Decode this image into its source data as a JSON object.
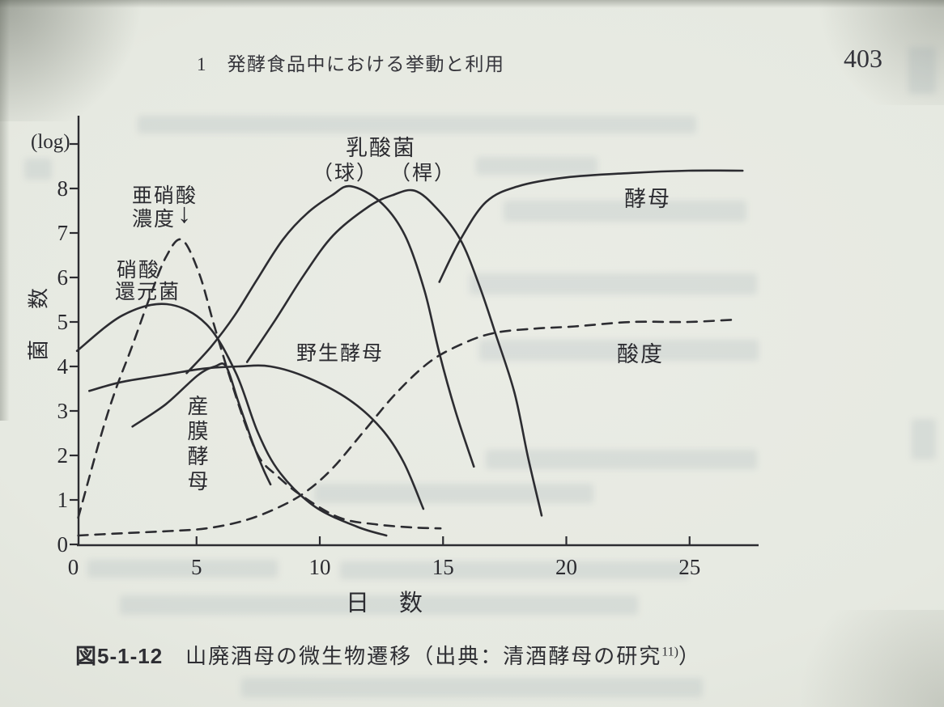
{
  "page": {
    "header": {
      "section_title": "1　発酵食品中における挙動と利用",
      "page_number": "403"
    },
    "caption": {
      "figure_label": "図5-1-12",
      "figure_title": "山廃酒母の微生物遷移",
      "source_text": "（出典：清酒酵母の研究",
      "reference_mark": "11)",
      "source_close": "）"
    }
  },
  "chart_data": {
    "type": "line",
    "title": "山廃酒母の微生物遷移",
    "xlabel": "日　数",
    "ylabel": "菌　数",
    "y_unit": "(log)",
    "xlim": [
      0,
      27.8
    ],
    "ylim": [
      0,
      9.4
    ],
    "x_ticks": [
      0,
      5,
      10,
      15,
      20,
      25
    ],
    "y_ticks": [
      0,
      1,
      2,
      3,
      4,
      5,
      6,
      7,
      8
    ],
    "grid": false,
    "legend": "inline-annotations",
    "ink_color": "#2c2c31",
    "series": [
      {
        "id": "nitrate_reducing_bacteria",
        "label": "硝酸還元菌",
        "style": "solid",
        "points": [
          [
            0.15,
            4.35
          ],
          [
            2.0,
            5.15
          ],
          [
            3.8,
            5.4
          ],
          [
            5.4,
            4.95
          ],
          [
            6.6,
            3.85
          ],
          [
            7.5,
            2.5
          ],
          [
            8.4,
            1.6
          ],
          [
            9.8,
            0.85
          ],
          [
            11.5,
            0.4
          ],
          [
            12.7,
            0.2
          ]
        ]
      },
      {
        "id": "nitrite_concentration",
        "label": "亜硝酸濃度",
        "style": "dashed",
        "points": [
          [
            0.2,
            0.6
          ],
          [
            1.1,
            2.4
          ],
          [
            1.7,
            3.45
          ],
          [
            2.35,
            4.4
          ],
          [
            3.1,
            5.55
          ],
          [
            3.75,
            6.45
          ],
          [
            4.4,
            6.85
          ],
          [
            5.1,
            6.1
          ],
          [
            5.7,
            4.95
          ],
          [
            6.3,
            3.85
          ],
          [
            6.95,
            2.75
          ],
          [
            7.55,
            1.95
          ],
          [
            8.25,
            1.55
          ],
          [
            9.25,
            1.1
          ],
          [
            10.8,
            0.6
          ],
          [
            12.3,
            0.45
          ],
          [
            13.8,
            0.38
          ],
          [
            14.9,
            0.36
          ]
        ]
      },
      {
        "id": "film_forming_yeast",
        "label": "産膜酵母",
        "style": "solid",
        "points": [
          [
            2.4,
            2.65
          ],
          [
            3.75,
            3.15
          ],
          [
            5.05,
            3.8
          ],
          [
            5.75,
            4.0
          ],
          [
            6.2,
            4.0
          ],
          [
            6.7,
            3.2
          ],
          [
            7.3,
            2.25
          ],
          [
            7.7,
            1.7
          ],
          [
            8.0,
            1.35
          ]
        ]
      },
      {
        "id": "wild_yeast",
        "label": "野生酵母",
        "style": "solid",
        "points": [
          [
            0.65,
            3.45
          ],
          [
            1.95,
            3.65
          ],
          [
            3.6,
            3.8
          ],
          [
            5.25,
            3.95
          ],
          [
            6.7,
            4.0
          ],
          [
            8.0,
            4.0
          ],
          [
            9.5,
            3.75
          ],
          [
            11.2,
            3.25
          ],
          [
            12.5,
            2.6
          ],
          [
            13.4,
            1.85
          ],
          [
            14.2,
            0.8
          ]
        ]
      },
      {
        "id": "lactic_acid_bacteria_cocci",
        "label": "乳酸菌（球）",
        "style": "solid",
        "points": [
          [
            4.6,
            3.85
          ],
          [
            5.6,
            4.45
          ],
          [
            6.55,
            5.15
          ],
          [
            7.45,
            5.95
          ],
          [
            8.5,
            6.85
          ],
          [
            9.5,
            7.45
          ],
          [
            10.5,
            7.85
          ],
          [
            11.25,
            8.05
          ],
          [
            12.45,
            7.7
          ],
          [
            13.45,
            6.95
          ],
          [
            14.25,
            5.7
          ],
          [
            14.85,
            4.3
          ],
          [
            15.5,
            3.0
          ],
          [
            16.25,
            1.75
          ]
        ]
      },
      {
        "id": "lactic_acid_bacteria_rods",
        "label": "乳酸菌（桿）",
        "style": "solid",
        "points": [
          [
            7.05,
            4.1
          ],
          [
            8.2,
            5.05
          ],
          [
            9.35,
            6.05
          ],
          [
            10.55,
            6.95
          ],
          [
            12.0,
            7.6
          ],
          [
            12.95,
            7.85
          ],
          [
            13.85,
            7.95
          ],
          [
            14.75,
            7.55
          ],
          [
            15.7,
            6.85
          ],
          [
            16.45,
            5.85
          ],
          [
            17.15,
            4.7
          ],
          [
            17.9,
            3.4
          ],
          [
            18.45,
            1.95
          ],
          [
            19.0,
            0.65
          ]
        ]
      },
      {
        "id": "sake_yeast",
        "label": "酵母",
        "style": "solid",
        "points": [
          [
            14.85,
            5.9
          ],
          [
            15.7,
            6.85
          ],
          [
            16.75,
            7.7
          ],
          [
            18.05,
            8.05
          ],
          [
            20.0,
            8.25
          ],
          [
            22.65,
            8.35
          ],
          [
            24.95,
            8.4
          ],
          [
            27.15,
            8.4
          ]
        ]
      },
      {
        "id": "acidity",
        "label": "酸度",
        "style": "dashed",
        "points": [
          [
            0.2,
            0.2
          ],
          [
            1.95,
            0.25
          ],
          [
            3.9,
            0.3
          ],
          [
            5.4,
            0.36
          ],
          [
            6.9,
            0.53
          ],
          [
            8.2,
            0.8
          ],
          [
            9.35,
            1.15
          ],
          [
            10.5,
            1.7
          ],
          [
            11.8,
            2.55
          ],
          [
            13.1,
            3.4
          ],
          [
            14.45,
            4.1
          ],
          [
            15.75,
            4.5
          ],
          [
            17.05,
            4.75
          ],
          [
            18.7,
            4.85
          ],
          [
            20.35,
            4.9
          ],
          [
            22.65,
            5.0
          ],
          [
            24.95,
            5.0
          ],
          [
            26.75,
            5.05
          ]
        ]
      }
    ],
    "annotations": {
      "lab_group": "乳酸菌",
      "lab_cocci": "（球）",
      "lab_rods": "（桿）",
      "nitrite_line1": "亜硝酸",
      "nitrite_line2": "濃度",
      "nitrite_arrow": "↓",
      "nitrate_line1": "硝酸",
      "nitrate_line2": "還元菌",
      "wild_yeast": "野生酵母",
      "film_yeast": "産膜酵母",
      "sake_yeast": "酵母",
      "acidity": "酸度"
    }
  }
}
